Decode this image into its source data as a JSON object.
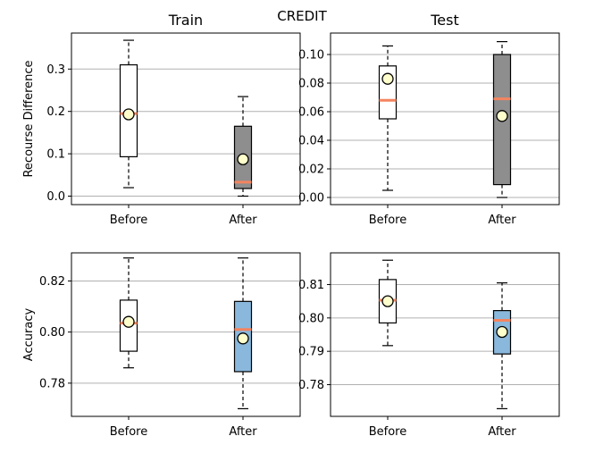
{
  "figure_title": "CREDIT",
  "colors": {
    "median": "#f4845f",
    "mean_marker": "#ffffcc",
    "grid": "#b0b0b0",
    "box_white": "#ffffff",
    "box_gray": "#8e8e8e",
    "box_blue": "#8ab8dc"
  },
  "chart_data": [
    {
      "type": "box",
      "title": "Train",
      "ylabel": "Recourse Difference",
      "categories": [
        "Before",
        "After"
      ],
      "ylim": [
        -0.02,
        0.385
      ],
      "yticks": [
        0.0,
        0.1,
        0.2,
        0.3
      ],
      "yticklabels": [
        "0.0",
        "0.1",
        "0.2",
        "0.3"
      ],
      "grid": true,
      "boxes": [
        {
          "label": "Before",
          "whisker_low": 0.02,
          "q1": 0.093,
          "median": 0.195,
          "q3": 0.31,
          "whisker_high": 0.368,
          "mean": 0.193,
          "fill": "#ffffff"
        },
        {
          "label": "After",
          "whisker_low": 0.0,
          "q1": 0.018,
          "median": 0.033,
          "q3": 0.165,
          "whisker_high": 0.235,
          "mean": 0.087,
          "fill": "#8e8e8e"
        }
      ]
    },
    {
      "type": "box",
      "title": "Test",
      "ylabel": "",
      "categories": [
        "Before",
        "After"
      ],
      "ylim": [
        -0.005,
        0.115
      ],
      "yticks": [
        0.0,
        0.02,
        0.04,
        0.06,
        0.08,
        0.1
      ],
      "yticklabels": [
        "0.00",
        "0.02",
        "0.04",
        "0.06",
        "0.08",
        "0.10"
      ],
      "grid": true,
      "boxes": [
        {
          "label": "Before",
          "whisker_low": 0.005,
          "q1": 0.055,
          "median": 0.068,
          "q3": 0.092,
          "whisker_high": 0.106,
          "mean": 0.083,
          "fill": "#ffffff"
        },
        {
          "label": "After",
          "whisker_low": 0.0,
          "q1": 0.009,
          "median": 0.069,
          "q3": 0.1,
          "whisker_high": 0.109,
          "mean": 0.057,
          "fill": "#8e8e8e"
        }
      ]
    },
    {
      "type": "box",
      "title": "",
      "ylabel": "Accuracy",
      "categories": [
        "Before",
        "After"
      ],
      "ylim": [
        0.767,
        0.831
      ],
      "yticks": [
        0.78,
        0.8,
        0.82
      ],
      "yticklabels": [
        "0.78",
        "0.80",
        "0.82"
      ],
      "grid": true,
      "boxes": [
        {
          "label": "Before",
          "whisker_low": 0.786,
          "q1": 0.7925,
          "median": 0.8035,
          "q3": 0.8125,
          "whisker_high": 0.829,
          "mean": 0.804,
          "fill": "#ffffff"
        },
        {
          "label": "After",
          "whisker_low": 0.77,
          "q1": 0.7845,
          "median": 0.801,
          "q3": 0.812,
          "whisker_high": 0.829,
          "mean": 0.7975,
          "fill": "#8ab8dc"
        }
      ]
    },
    {
      "type": "box",
      "title": "",
      "ylabel": "",
      "categories": [
        "Before",
        "After"
      ],
      "ylim": [
        0.7705,
        0.8195
      ],
      "yticks": [
        0.78,
        0.79,
        0.8,
        0.81
      ],
      "yticklabels": [
        "0.78",
        "0.79",
        "0.80",
        "0.81"
      ],
      "grid": true,
      "boxes": [
        {
          "label": "Before",
          "whisker_low": 0.7917,
          "q1": 0.7985,
          "median": 0.8053,
          "q3": 0.8115,
          "whisker_high": 0.8173,
          "mean": 0.805,
          "fill": "#ffffff"
        },
        {
          "label": "After",
          "whisker_low": 0.7728,
          "q1": 0.7892,
          "median": 0.7993,
          "q3": 0.8022,
          "whisker_high": 0.8105,
          "mean": 0.7958,
          "fill": "#8ab8dc"
        }
      ]
    }
  ]
}
